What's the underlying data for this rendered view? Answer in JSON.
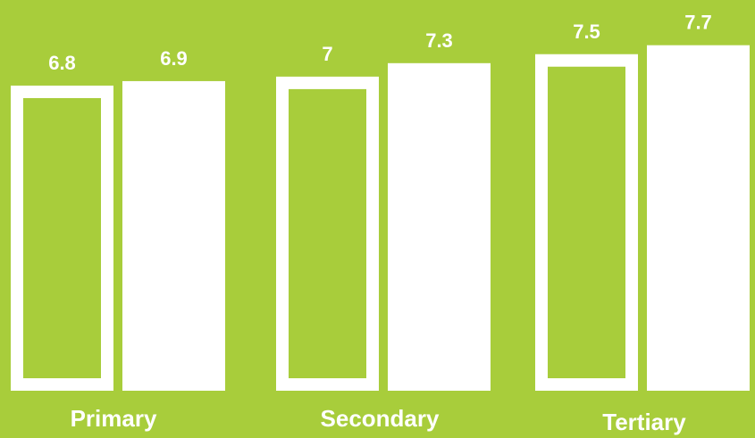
{
  "chart_data": {
    "type": "bar",
    "categories": [
      "Primary",
      "Secondary",
      "Tertiary"
    ],
    "series": [
      {
        "values": [
          6.8,
          7,
          7.5
        ],
        "style": "outline"
      },
      {
        "values": [
          6.9,
          7.3,
          7.7
        ],
        "style": "solid"
      }
    ],
    "ylim": [
      0,
      8.7
    ],
    "grid": false,
    "colors": {
      "background": "#a8cd3b",
      "bar": "#ffffff"
    }
  }
}
